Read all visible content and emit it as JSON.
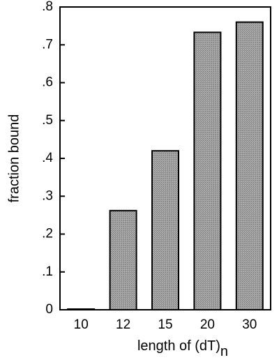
{
  "chart_data": {
    "type": "bar",
    "xlabel": "length of (dT)",
    "xlabel_subscript": "n",
    "ylabel": "fraction bound",
    "categories": [
      "10",
      "12",
      "15",
      "20",
      "30"
    ],
    "values": [
      0.0,
      0.262,
      0.42,
      0.733,
      0.76
    ],
    "ylim": [
      0,
      0.8
    ],
    "yticks": [
      0,
      0.1,
      0.2,
      0.3,
      0.4,
      0.5,
      0.6,
      0.7,
      0.8
    ],
    "ytick_labels": [
      "0",
      ".1",
      ".2",
      ".3",
      ".4",
      ".5",
      ".6",
      ".7",
      ".8"
    ],
    "grid": false,
    "bar_fill": "#9a9a9a",
    "bar_edge": "#000000"
  }
}
